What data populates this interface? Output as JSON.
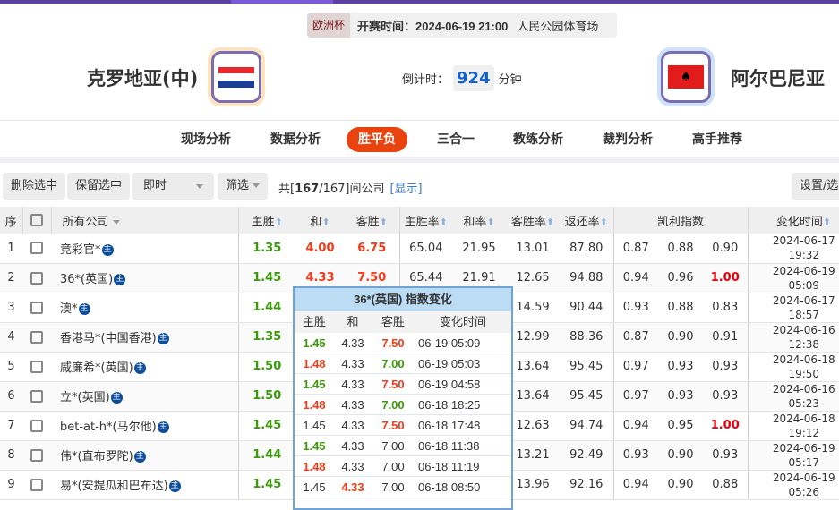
{
  "match": {
    "league": "欧洲杯",
    "kickoff": "开赛时间：2024-06-19 21:00",
    "venue": "人民公园体育场",
    "home": "克罗地亚(中)",
    "away": "阿尔巴尼亚",
    "countdown_label": "倒计时：",
    "countdown": "924",
    "countdown_unit": "分钟"
  },
  "nav": [
    "现场分析",
    "数据分析",
    "胜平负",
    "三合一",
    "教练分析",
    "裁判分析",
    "高手推荐"
  ],
  "nav_active": "胜平负",
  "toolbar": {
    "delete": "删除选中",
    "keep": "保留选中",
    "mode": "即时",
    "filter": "筛选",
    "count_prefix": "共[",
    "count_shown": "167",
    "count_rest": "/167]间公司",
    "show": "[显示]",
    "settings": "设置/选"
  },
  "headers": {
    "idx": "序",
    "company": "所有公司",
    "home": "主胜",
    "draw": "和",
    "away": "客胜",
    "home_rate": "主胜率",
    "draw_rate": "和率",
    "away_rate": "客胜率",
    "return": "返还率",
    "kelly": "凯利指数",
    "time": "变化时间"
  },
  "badge": "主",
  "rows": [
    {
      "i": "1",
      "c": "竞彩官*",
      "h": "1.35",
      "d": "4.00",
      "a": "6.75",
      "hc": "g",
      "dc": "r",
      "ac": "r",
      "hr": "65.04",
      "dr": "21.95",
      "ar": "13.01",
      "ret": "87.80",
      "k1": "0.87",
      "k2": "0.88",
      "k3": "0.90",
      "k3c": "",
      "t1": "2024-06-17",
      "t2": "19:32"
    },
    {
      "i": "2",
      "c": "36*(英国)",
      "h": "1.45",
      "d": "4.33",
      "a": "7.50",
      "hc": "g",
      "dc": "r",
      "ac": "r",
      "hr": "65.44",
      "dr": "21.91",
      "ar": "12.65",
      "ret": "94.88",
      "k1": "0.94",
      "k2": "0.96",
      "k3": "1.00",
      "k3c": "red",
      "t1": "2024-06-19",
      "t2": "05:09"
    },
    {
      "i": "3",
      "c": "澳*",
      "h": "1.44",
      "d": "",
      "a": "",
      "hc": "g",
      "dc": "",
      "ac": "",
      "hr": "",
      "dr": "",
      "ar": "14.59",
      "ret": "90.44",
      "k1": "0.93",
      "k2": "0.88",
      "k3": "0.83",
      "k3c": "",
      "t1": "2024-06-17",
      "t2": "18:57"
    },
    {
      "i": "4",
      "c": "香港马*(中国香港)",
      "h": "1.35",
      "d": "",
      "a": "",
      "hc": "g",
      "dc": "",
      "ac": "",
      "hr": "",
      "dr": "",
      "ar": "12.99",
      "ret": "88.36",
      "k1": "0.87",
      "k2": "0.90",
      "k3": "0.91",
      "k3c": "",
      "t1": "2024-06-16",
      "t2": "12:38"
    },
    {
      "i": "5",
      "c": "威廉希*(英国)",
      "h": "1.50",
      "d": "",
      "a": "",
      "hc": "g",
      "dc": "",
      "ac": "",
      "hr": "",
      "dr": "",
      "ar": "13.64",
      "ret": "95.45",
      "k1": "0.97",
      "k2": "0.93",
      "k3": "0.93",
      "k3c": "",
      "t1": "2024-06-18",
      "t2": "19:50"
    },
    {
      "i": "6",
      "c": "立*(英国)",
      "h": "1.50",
      "d": "",
      "a": "",
      "hc": "g",
      "dc": "",
      "ac": "",
      "hr": "",
      "dr": "",
      "ar": "13.64",
      "ret": "95.45",
      "k1": "0.97",
      "k2": "0.93",
      "k3": "0.93",
      "k3c": "",
      "t1": "2024-06-16",
      "t2": "05:23"
    },
    {
      "i": "7",
      "c": "bet-at-h*(马尔他)",
      "h": "1.45",
      "d": "",
      "a": "",
      "hc": "g",
      "dc": "",
      "ac": "",
      "hr": "",
      "dr": "",
      "ar": "12.63",
      "ret": "94.74",
      "k1": "0.94",
      "k2": "0.95",
      "k3": "1.00",
      "k3c": "red",
      "t1": "2024-06-18",
      "t2": "19:12"
    },
    {
      "i": "8",
      "c": "伟*(直布罗陀)",
      "h": "1.44",
      "d": "",
      "a": "",
      "hc": "g",
      "dc": "",
      "ac": "",
      "hr": "",
      "dr": "",
      "ar": "13.21",
      "ret": "92.49",
      "k1": "0.93",
      "k2": "0.90",
      "k3": "0.93",
      "k3c": "",
      "t1": "2024-06-19",
      "t2": "05:17"
    },
    {
      "i": "9",
      "c": "易*(安提瓜和巴布达)",
      "h": "1.45",
      "d": "",
      "a": "",
      "hc": "g",
      "dc": "",
      "ac": "",
      "hr": "",
      "dr": "",
      "ar": "13.96",
      "ret": "92.16",
      "k1": "0.94",
      "k2": "0.90",
      "k3": "0.88",
      "k3c": "",
      "t1": "2024-06-19",
      "t2": "05:26"
    }
  ],
  "popup": {
    "title": "36*(英国) 指数变化",
    "headers": [
      "主胜",
      "和",
      "客胜",
      "变化时间"
    ],
    "rows": [
      {
        "h": "1.45",
        "d": "4.33",
        "a": "7.50",
        "t": "06-19 05:09",
        "hc": "g",
        "dc": "",
        "ac": "r"
      },
      {
        "h": "1.48",
        "d": "4.33",
        "a": "7.00",
        "t": "06-19 05:03",
        "hc": "r",
        "dc": "",
        "ac": "g"
      },
      {
        "h": "1.45",
        "d": "4.33",
        "a": "7.50",
        "t": "06-19 04:58",
        "hc": "g",
        "dc": "",
        "ac": "r"
      },
      {
        "h": "1.48",
        "d": "4.33",
        "a": "7.00",
        "t": "06-18 18:25",
        "hc": "r",
        "dc": "",
        "ac": "g"
      },
      {
        "h": "1.45",
        "d": "4.33",
        "a": "7.50",
        "t": "06-18 17:48",
        "hc": "",
        "dc": "",
        "ac": "r"
      },
      {
        "h": "1.45",
        "d": "4.33",
        "a": "7.00",
        "t": "06-18 11:38",
        "hc": "g",
        "dc": "",
        "ac": ""
      },
      {
        "h": "1.48",
        "d": "4.33",
        "a": "7.00",
        "t": "06-18 11:19",
        "hc": "r",
        "dc": "",
        "ac": ""
      },
      {
        "h": "1.45",
        "d": "4.33",
        "a": "7.00",
        "t": "06-18 08:50",
        "hc": "",
        "dc": "r",
        "ac": ""
      }
    ]
  },
  "colors": {
    "accent": "#e9430f",
    "topbar": "#5b3fa3",
    "popup_header": "#bcdcf4",
    "green": "#3a9a0a",
    "red": "#f03c1a"
  }
}
